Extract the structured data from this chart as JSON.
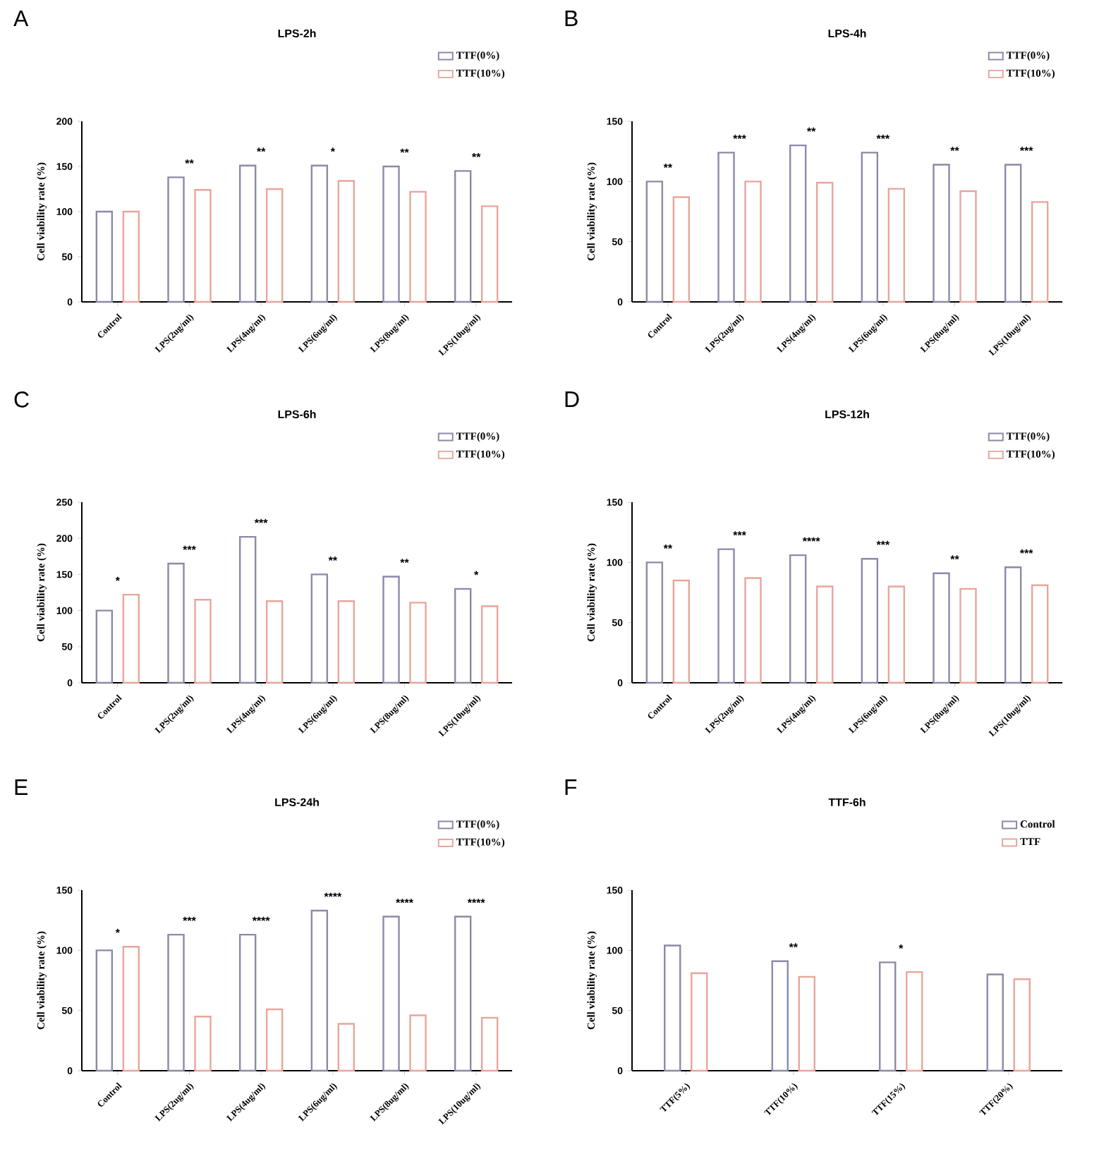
{
  "chart_data": [
    {
      "type": "bar",
      "title": "LPS-2h",
      "ylabel": "Cell viability rate (%)",
      "categories": [
        "Control",
        "LPS(2ug/ml)",
        "LPS(4ug/ml)",
        "LPS(6ug/ml)",
        "LPS(8ug/ml)",
        "LPS(10ug/ml)"
      ],
      "series": [
        {
          "name": "TTF(0%)",
          "color": "#8a8aa8",
          "values": [
            100,
            138,
            151,
            151,
            150,
            145
          ]
        },
        {
          "name": "TTF(10%)",
          "color": "#e8a59a",
          "values": [
            100,
            124,
            125,
            134,
            122,
            106
          ]
        }
      ],
      "ylim": [
        0,
        200
      ],
      "yticks": [
        0,
        50,
        100,
        150,
        200
      ],
      "legend": "top right",
      "grid": false,
      "annotations": [
        "A",
        {
          "text": "**",
          "x": "LPS(2ug/ml)",
          "y": 138
        },
        {
          "text": "**",
          "x": "LPS(4ug/ml)",
          "y": 151
        },
        {
          "text": "*",
          "x": "LPS(6ug/ml)",
          "y": 151
        },
        {
          "text": "**",
          "x": "LPS(8ug/ml)",
          "y": 150
        },
        {
          "text": "**",
          "x": "LPS(10ug/ml)",
          "y": 145
        }
      ]
    },
    {
      "type": "bar",
      "title": "LPS-4h",
      "ylabel": "Cell viability rate (%)",
      "categories": [
        "Control",
        "LPS(2ug/ml)",
        "LPS(4ug/ml)",
        "LPS(6ug/ml)",
        "LPS(8ug/ml)",
        "LPS(10ug/ml)"
      ],
      "series": [
        {
          "name": "TTF(0%)",
          "color": "#8a8aa8",
          "values": [
            100,
            124,
            130,
            124,
            114,
            114
          ]
        },
        {
          "name": "TTF(10%)",
          "color": "#e8a59a",
          "values": [
            87,
            100,
            99,
            94,
            92,
            83
          ]
        }
      ],
      "ylim": [
        0,
        150
      ],
      "yticks": [
        0,
        50,
        100,
        150
      ],
      "legend": "top right",
      "grid": false,
      "annotations": [
        "B",
        {
          "text": "**",
          "x": "Control",
          "y": 100
        },
        {
          "text": "***",
          "x": "LPS(2ug/ml)",
          "y": 124
        },
        {
          "text": "**",
          "x": "LPS(4ug/ml)",
          "y": 130
        },
        {
          "text": "***",
          "x": "LPS(6ug/ml)",
          "y": 124
        },
        {
          "text": "**",
          "x": "LPS(8ug/ml)",
          "y": 114
        },
        {
          "text": "***",
          "x": "LPS(10ug/ml)",
          "y": 114
        }
      ]
    },
    {
      "type": "bar",
      "title": "LPS-6h",
      "ylabel": "Cell viability rate (%)",
      "categories": [
        "Control",
        "LPS(2ug/ml)",
        "LPS(4ug/ml)",
        "LPS(6ug/ml)",
        "LPS(8ug/ml)",
        "LPS(10ug/ml)"
      ],
      "series": [
        {
          "name": "TTF(0%)",
          "color": "#8a8aa8",
          "values": [
            100,
            165,
            202,
            150,
            147,
            130
          ]
        },
        {
          "name": "TTF(10%)",
          "color": "#e8a59a",
          "values": [
            122,
            115,
            113,
            113,
            111,
            106
          ]
        }
      ],
      "ylim": [
        0,
        250
      ],
      "yticks": [
        0,
        50,
        100,
        150,
        200,
        250
      ],
      "legend": "top right",
      "grid": false,
      "annotations": [
        "C",
        {
          "text": "*",
          "x": "Control",
          "y": 122
        },
        {
          "text": "***",
          "x": "LPS(2ug/ml)",
          "y": 165
        },
        {
          "text": "***",
          "x": "LPS(4ug/ml)",
          "y": 202
        },
        {
          "text": "**",
          "x": "LPS(6ug/ml)",
          "y": 150
        },
        {
          "text": "**",
          "x": "LPS(8ug/ml)",
          "y": 147
        },
        {
          "text": "*",
          "x": "LPS(10ug/ml)",
          "y": 130
        }
      ]
    },
    {
      "type": "bar",
      "title": "LPS-12h",
      "ylabel": "Cell viability rate (%)",
      "categories": [
        "Control",
        "LPS(2ug/ml)",
        "LPS(4ug/ml)",
        "LPS(6ug/ml)",
        "LPS(8ug/ml)",
        "LPS(10ug/ml)"
      ],
      "series": [
        {
          "name": "TTF(0%)",
          "color": "#8a8aa8",
          "values": [
            100,
            111,
            106,
            103,
            91,
            96
          ]
        },
        {
          "name": "TTF(10%)",
          "color": "#e8a59a",
          "values": [
            85,
            87,
            80,
            80,
            78,
            81
          ]
        }
      ],
      "ylim": [
        0,
        150
      ],
      "yticks": [
        0,
        50,
        100,
        150
      ],
      "legend": "top right",
      "grid": false,
      "annotations": [
        "D",
        {
          "text": "**",
          "x": "Control",
          "y": 100
        },
        {
          "text": "***",
          "x": "LPS(2ug/ml)",
          "y": 111
        },
        {
          "text": "****",
          "x": "LPS(4ug/ml)",
          "y": 106
        },
        {
          "text": "***",
          "x": "LPS(6ug/ml)",
          "y": 103
        },
        {
          "text": "**",
          "x": "LPS(8ug/ml)",
          "y": 91
        },
        {
          "text": "***",
          "x": "LPS(10ug/ml)",
          "y": 96
        }
      ]
    },
    {
      "type": "bar",
      "title": "LPS-24h",
      "ylabel": "Cell viability rate (%)",
      "categories": [
        "Control",
        "LPS(2ug/ml)",
        "LPS(4ug/ml)",
        "LPS(6ug/ml)",
        "LPS(8ug/ml)",
        "LPS(10ug/ml)"
      ],
      "series": [
        {
          "name": "TTF(0%)",
          "color": "#8a8aa8",
          "values": [
            100,
            113,
            113,
            133,
            128,
            128
          ]
        },
        {
          "name": "TTF(10%)",
          "color": "#e8a59a",
          "values": [
            103,
            45,
            51,
            39,
            46,
            44
          ]
        }
      ],
      "ylim": [
        0,
        150
      ],
      "yticks": [
        0,
        50,
        100,
        150
      ],
      "legend": "top right",
      "grid": false,
      "annotations": [
        "E",
        {
          "text": "*",
          "x": "Control",
          "y": 103
        },
        {
          "text": "***",
          "x": "LPS(2ug/ml)",
          "y": 113
        },
        {
          "text": "****",
          "x": "LPS(4ug/ml)",
          "y": 113
        },
        {
          "text": "****",
          "x": "LPS(6ug/ml)",
          "y": 133
        },
        {
          "text": "****",
          "x": "LPS(8ug/ml)",
          "y": 128
        },
        {
          "text": "****",
          "x": "LPS(10ug/ml)",
          "y": 128
        }
      ]
    },
    {
      "type": "bar",
      "title": "TTF-6h",
      "ylabel": "Cell viability rate (%)",
      "categories": [
        "TTF(5%)",
        "TTF(10%)",
        "TTF(15%)",
        "TTF(20%)"
      ],
      "series": [
        {
          "name": "Control",
          "color": "#8a8aa8",
          "values": [
            104,
            91,
            90,
            80
          ]
        },
        {
          "name": "TTF",
          "color": "#e8a59a",
          "values": [
            81,
            78,
            82,
            76
          ]
        }
      ],
      "ylim": [
        0,
        150
      ],
      "yticks": [
        0,
        50,
        100,
        150
      ],
      "legend": "top right",
      "grid": false,
      "annotations": [
        "F",
        {
          "text": "**",
          "x": "TTF(10%)",
          "y": 91
        },
        {
          "text": "*",
          "x": "TTF(15%)",
          "y": 90
        }
      ]
    }
  ]
}
